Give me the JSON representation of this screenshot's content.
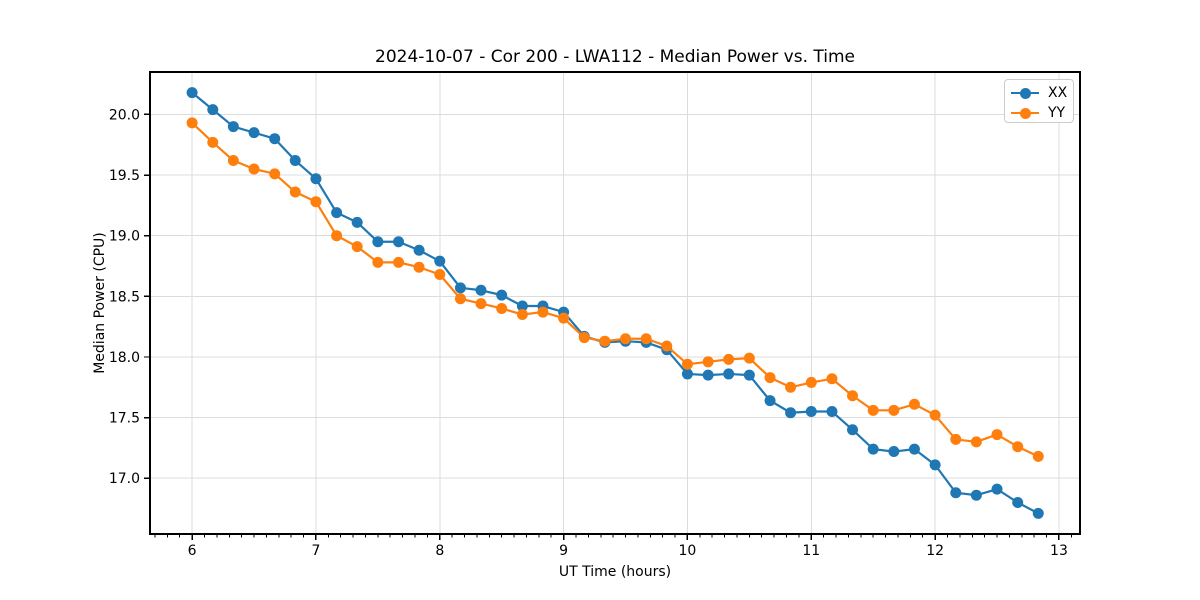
{
  "figure": {
    "background": "#ffffff"
  },
  "chart_data": {
    "type": "line",
    "title": "2024-10-07 - Cor 200 - LWA112 - Median Power vs. Time",
    "xlabel": "UT Time (hours)",
    "ylabel": "Median Power (CPU)",
    "xlim": [
      5.66,
      13.17
    ],
    "ylim": [
      16.54,
      20.35
    ],
    "xticks": [
      6,
      7,
      8,
      9,
      10,
      11,
      12,
      13
    ],
    "xtick_labels": [
      "6",
      "7",
      "8",
      "9",
      "10",
      "11",
      "12",
      "13"
    ],
    "x_minor_tick_step": 0.1,
    "yticks": [
      17.0,
      17.5,
      18.0,
      18.5,
      19.0,
      19.5,
      20.0
    ],
    "ytick_labels": [
      "17.0",
      "17.5",
      "18.0",
      "18.5",
      "19.0",
      "19.5",
      "20.0"
    ],
    "grid": true,
    "grid_color": "#dcdcdc",
    "spine_color": "#000000",
    "legend_position": "upper right",
    "x": [
      6.0,
      6.167,
      6.333,
      6.5,
      6.667,
      6.833,
      7.0,
      7.167,
      7.333,
      7.5,
      7.667,
      7.833,
      8.0,
      8.167,
      8.333,
      8.5,
      8.667,
      8.833,
      9.0,
      9.167,
      9.333,
      9.5,
      9.667,
      9.833,
      10.0,
      10.167,
      10.333,
      10.5,
      10.667,
      10.833,
      11.0,
      11.167,
      11.333,
      11.5,
      11.667,
      11.833,
      12.0,
      12.167,
      12.333,
      12.5,
      12.667,
      12.833
    ],
    "series": [
      {
        "name": "XX",
        "color": "#1f77b4",
        "marker": "circle",
        "values": [
          20.18,
          20.04,
          19.9,
          19.85,
          19.8,
          19.62,
          19.47,
          19.19,
          19.11,
          18.95,
          18.95,
          18.88,
          18.79,
          18.57,
          18.55,
          18.51,
          18.42,
          18.42,
          18.37,
          18.17,
          18.12,
          18.13,
          18.12,
          18.06,
          17.86,
          17.85,
          17.86,
          17.85,
          17.64,
          17.54,
          17.55,
          17.55,
          17.4,
          17.24,
          17.22,
          17.24,
          17.11,
          16.88,
          16.86,
          16.91,
          16.8,
          16.71
        ]
      },
      {
        "name": "YY",
        "color": "#ff7f0e",
        "marker": "circle",
        "values": [
          19.93,
          19.77,
          19.62,
          19.55,
          19.51,
          19.36,
          19.28,
          19.0,
          18.91,
          18.78,
          18.78,
          18.74,
          18.68,
          18.48,
          18.44,
          18.4,
          18.35,
          18.37,
          18.32,
          18.16,
          18.13,
          18.15,
          18.15,
          18.09,
          17.94,
          17.96,
          17.98,
          17.99,
          17.83,
          17.75,
          17.79,
          17.82,
          17.68,
          17.56,
          17.56,
          17.61,
          17.52,
          17.32,
          17.3,
          17.36,
          17.26,
          17.18
        ]
      }
    ]
  },
  "legend": {
    "items": [
      {
        "label": "XX",
        "color": "#1f77b4"
      },
      {
        "label": "YY",
        "color": "#ff7f0e"
      }
    ]
  }
}
